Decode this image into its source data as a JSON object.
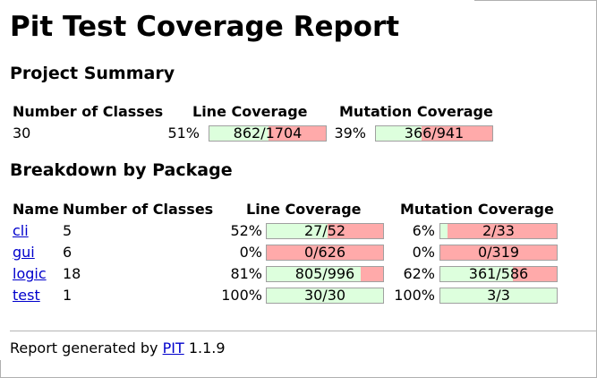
{
  "title": "Pit Test Coverage Report",
  "summary": {
    "heading": "Project Summary",
    "headers": {
      "classes": "Number of Classes",
      "line": "Line Coverage",
      "mutation": "Mutation Coverage"
    },
    "classes": "30",
    "line": {
      "pct": "51%",
      "text": "862/1704",
      "ratio": 0.506
    },
    "mutation": {
      "pct": "39%",
      "text": "366/941",
      "ratio": 0.389
    }
  },
  "breakdown": {
    "heading": "Breakdown by Package",
    "headers": {
      "name": "Name",
      "classes": "Number of Classes",
      "line": "Line Coverage",
      "mutation": "Mutation Coverage"
    },
    "rows": [
      {
        "name": "cli",
        "classes": "5",
        "line_pct": "52%",
        "line_text": "27/52",
        "line_ratio": 0.52,
        "mut_pct": "6%",
        "mut_text": "2/33",
        "mut_ratio": 0.06
      },
      {
        "name": "gui",
        "classes": "6",
        "line_pct": "0%",
        "line_text": "0/626",
        "line_ratio": 0.0,
        "mut_pct": "0%",
        "mut_text": "0/319",
        "mut_ratio": 0.0
      },
      {
        "name": "logic",
        "classes": "18",
        "line_pct": "81%",
        "line_text": "805/996",
        "line_ratio": 0.81,
        "mut_pct": "62%",
        "mut_text": "361/586",
        "mut_ratio": 0.62
      },
      {
        "name": "test",
        "classes": "1",
        "line_pct": "100%",
        "line_text": "30/30",
        "line_ratio": 1.0,
        "mut_pct": "100%",
        "mut_text": "3/3",
        "mut_ratio": 1.0
      }
    ]
  },
  "footer": {
    "prefix": "Report generated by",
    "link": "PIT",
    "version": "1.1.9"
  },
  "colors": {
    "covered": "#ddffdd",
    "uncovered": "#ffaaaa",
    "link": "#0000cc"
  }
}
